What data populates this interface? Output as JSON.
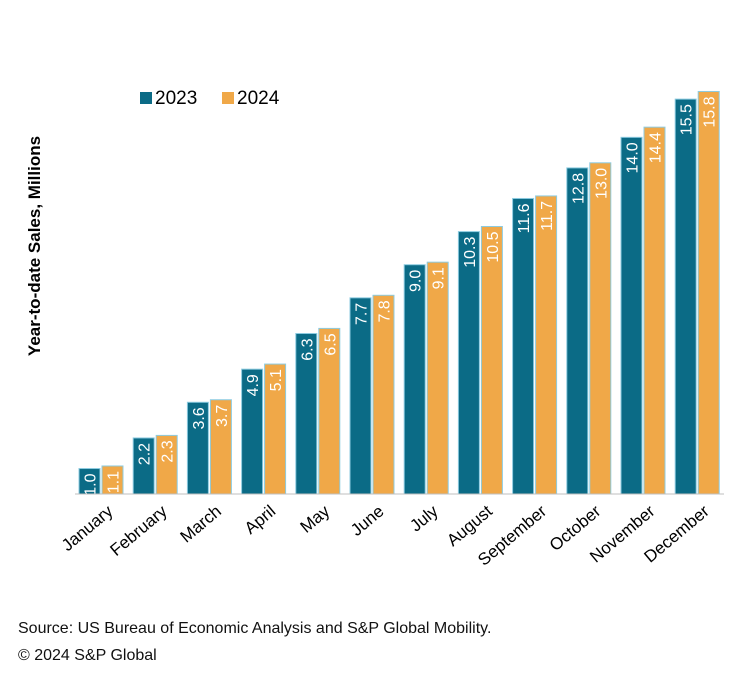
{
  "chart_data": {
    "type": "bar",
    "title": "",
    "xlabel": "",
    "ylabel": "Year-to-date Sales, Millions",
    "ylim": [
      0,
      16.8
    ],
    "legend_position": "top-left",
    "categories": [
      "January",
      "February",
      "March",
      "April",
      "May",
      "June",
      "July",
      "August",
      "September",
      "October",
      "November",
      "December"
    ],
    "series": [
      {
        "name": "2023",
        "color": "#0b6b86",
        "labels": [
          "1.0",
          "2.2",
          "3.6",
          "4.9",
          "6.3",
          "7.7",
          "9.0",
          "10.3",
          "11.6",
          "12.8",
          "14.0",
          "15.5"
        ],
        "values": [
          1.0,
          2.2,
          3.6,
          4.9,
          6.3,
          7.7,
          9.0,
          10.3,
          11.6,
          12.8,
          14.0,
          15.5
        ]
      },
      {
        "name": "2024",
        "color": "#f0a848",
        "labels": [
          "1.1",
          "2.3",
          "3.7",
          "5.1",
          "6.5",
          "7.8",
          "9.1",
          "10.5",
          "11.7",
          "13.0",
          "14.4",
          "15.8"
        ],
        "values": [
          1.1,
          2.3,
          3.7,
          5.1,
          6.5,
          7.8,
          9.1,
          10.5,
          11.7,
          13.0,
          14.4,
          15.8
        ]
      }
    ]
  },
  "footer": {
    "source": "Source: US Bureau of Economic Analysis and S&P Global Mobility.",
    "copyright": "© 2024 S&P Global"
  }
}
